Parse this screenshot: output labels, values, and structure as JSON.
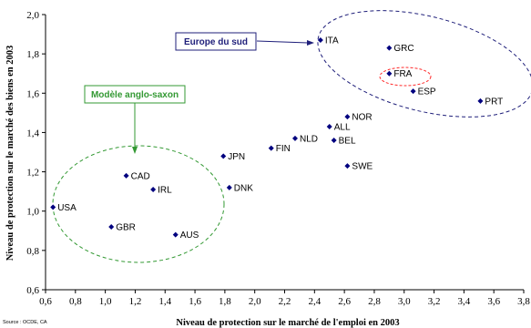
{
  "chart_data": {
    "type": "scatter",
    "xlabel": "Niveau de protection sur le marché de l'emploi en 2003",
    "ylabel": "Niveau de protection sur le marché des biens en 2003",
    "xlim": [
      0.6,
      3.8
    ],
    "ylim": [
      0.6,
      2.0
    ],
    "xticks": [
      "0,6",
      "0,8",
      "1,0",
      "1,2",
      "1,4",
      "1,6",
      "1,8",
      "2,0",
      "2,2",
      "2,4",
      "2,6",
      "2,8",
      "3,0",
      "3,2",
      "3,4",
      "3,6",
      "3,8"
    ],
    "yticks": [
      "0,6",
      "0,8",
      "1,0",
      "1,2",
      "1,4",
      "1,6",
      "1,8",
      "2,0"
    ],
    "grid": false,
    "marker_color": "#00007f",
    "points": [
      {
        "label": "ITA",
        "x": 2.44,
        "y": 1.87
      },
      {
        "label": "GRC",
        "x": 2.9,
        "y": 1.83
      },
      {
        "label": "FRA",
        "x": 2.9,
        "y": 1.7
      },
      {
        "label": "ESP",
        "x": 3.06,
        "y": 1.61
      },
      {
        "label": "PRT",
        "x": 3.51,
        "y": 1.56
      },
      {
        "label": "NOR",
        "x": 2.62,
        "y": 1.48
      },
      {
        "label": "ALL",
        "x": 2.5,
        "y": 1.43
      },
      {
        "label": "NLD",
        "x": 2.27,
        "y": 1.37
      },
      {
        "label": "BEL",
        "x": 2.53,
        "y": 1.36
      },
      {
        "label": "FIN",
        "x": 2.11,
        "y": 1.32
      },
      {
        "label": "JPN",
        "x": 1.79,
        "y": 1.28
      },
      {
        "label": "SWE",
        "x": 2.62,
        "y": 1.23
      },
      {
        "label": "CAD",
        "x": 1.14,
        "y": 1.18
      },
      {
        "label": "DNK",
        "x": 1.83,
        "y": 1.12
      },
      {
        "label": "IRL",
        "x": 1.32,
        "y": 1.11
      },
      {
        "label": "USA",
        "x": 0.65,
        "y": 1.02
      },
      {
        "label": "GBR",
        "x": 1.04,
        "y": 0.92
      },
      {
        "label": "AUS",
        "x": 1.47,
        "y": 0.88
      }
    ]
  },
  "annotations": {
    "europe_sud": {
      "text": "Europe du sud",
      "color": "#1f1f7a"
    },
    "anglo_saxon": {
      "text": "Modèle anglo-saxon",
      "color": "#339933"
    },
    "france_ring_color": "#ff2a2a"
  },
  "source_note": "Source : OCDE, CA"
}
